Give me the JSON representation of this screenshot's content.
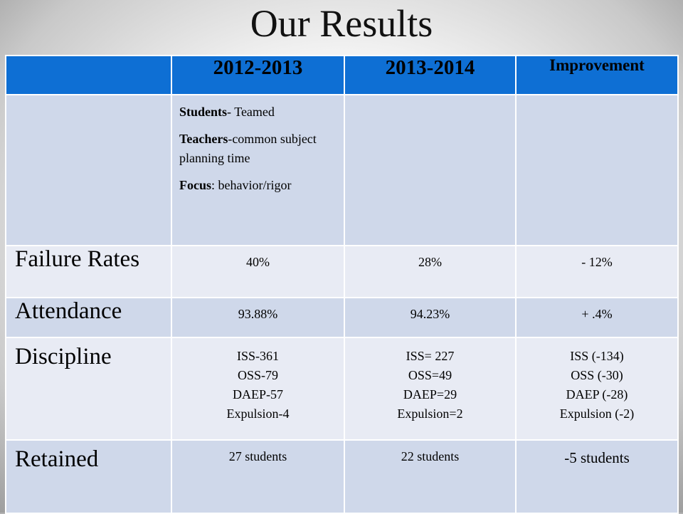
{
  "title": "Our Results",
  "table": {
    "headers": [
      "",
      "2012-2013",
      "2013-2014",
      "Improvement"
    ],
    "description": [
      {
        "bold": "Students",
        "text": "- Teamed"
      },
      {
        "bold": "Teachers",
        "text": "-common subject planning time"
      },
      {
        "bold": "Focus",
        "text": ": behavior/rigor"
      }
    ],
    "rows": [
      {
        "label": "Failure  Rates",
        "y2012": "40%",
        "y2013": "28%",
        "improvement": "- 12%"
      },
      {
        "label": "Attendance",
        "y2012": "93.88%",
        "y2013": "94.23%",
        "improvement": "+  .4%"
      },
      {
        "label": "Discipline",
        "y2012": [
          "ISS-361",
          "OSS-79",
          "DAEP-57",
          "Expulsion-4"
        ],
        "y2013": [
          "ISS= 227",
          "OSS=49",
          "DAEP=29",
          "Expulsion=2"
        ],
        "improvement": [
          "ISS (-134)",
          "OSS (-30)",
          "DAEP (-28)",
          "Expulsion (-2)"
        ]
      },
      {
        "label": "Retained",
        "y2012": "27 students",
        "y2013": "22 students",
        "improvement": "-5 students"
      }
    ]
  },
  "colors": {
    "header_bg": "#0e6fd4",
    "row_dark": "#cfd8ea",
    "row_light": "#e8ebf4"
  }
}
